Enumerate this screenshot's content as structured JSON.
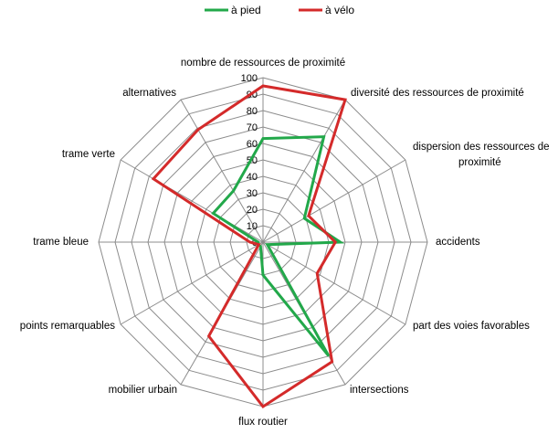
{
  "chart_data": {
    "type": "radar",
    "categories": [
      "nombre de ressources de proximité",
      "diversité des ressources de proximité",
      "dispersion des ressources de proximité",
      "accidents",
      "part des voies favorables",
      "intersections",
      "flux routier",
      "mobilier urbain",
      "points remarquables",
      "trame bleue",
      "trame verte",
      "alternatives"
    ],
    "series": [
      {
        "name": "à pied",
        "color": "#22a84a",
        "values": [
          63,
          74,
          29,
          47,
          3,
          80,
          20,
          3,
          3,
          3,
          35,
          36
        ]
      },
      {
        "name": "à vélo",
        "color": "#d42a2a",
        "values": [
          95,
          100,
          32,
          44,
          38,
          84,
          100,
          66,
          3,
          8,
          77,
          79
        ]
      }
    ],
    "ticks": [
      "0",
      "10",
      "20",
      "30",
      "40",
      "50",
      "60",
      "70",
      "80",
      "90",
      "100"
    ],
    "rmin": 0,
    "rmax": 100,
    "legend": "top"
  }
}
